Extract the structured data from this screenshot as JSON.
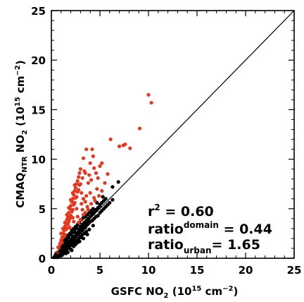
{
  "chart_data": {
    "type": "scatter",
    "title": "",
    "xlabel": {
      "base": "GSFC NO",
      "sub": "2",
      "unit_pre": " (10",
      "unit_sup": "15",
      "unit_mid": " cm",
      "unit_sup2": "−2",
      "unit_post": ")"
    },
    "ylabel": {
      "base": "CMAQ",
      "sub": "NTR",
      "mid": " NO",
      "sub2": "2",
      "unit_pre": " (10",
      "unit_sup": "15",
      "unit_mid": " cm",
      "unit_sup2": "−2",
      "unit_post": ")"
    },
    "xlim": [
      0,
      25
    ],
    "ylim": [
      0,
      25
    ],
    "x_ticks": [
      "0",
      "5",
      "10",
      "15",
      "20",
      "25"
    ],
    "y_ticks": [
      "0",
      "5",
      "10",
      "15",
      "20",
      "25"
    ],
    "one_to_one_line": true,
    "series": [
      {
        "color": "#000000",
        "points": [
          [
            0.3,
            0.1
          ],
          [
            0.5,
            0.2
          ],
          [
            0.6,
            0.4
          ],
          [
            0.7,
            0.3
          ],
          [
            0.8,
            0.5
          ],
          [
            0.9,
            0.6
          ],
          [
            1.0,
            0.8
          ],
          [
            1.1,
            0.7
          ],
          [
            1.2,
            0.9
          ],
          [
            1.3,
            1.0
          ],
          [
            1.4,
            1.1
          ],
          [
            1.5,
            1.2
          ],
          [
            1.6,
            1.3
          ],
          [
            1.7,
            1.5
          ],
          [
            1.8,
            1.4
          ],
          [
            1.9,
            1.6
          ],
          [
            2.0,
            1.7
          ],
          [
            2.1,
            1.8
          ],
          [
            2.2,
            2.0
          ],
          [
            2.3,
            1.9
          ],
          [
            2.4,
            2.1
          ],
          [
            2.5,
            2.2
          ],
          [
            2.6,
            2.3
          ],
          [
            2.7,
            2.4
          ],
          [
            2.8,
            2.5
          ],
          [
            2.9,
            2.6
          ],
          [
            3.0,
            2.7
          ],
          [
            3.1,
            2.9
          ],
          [
            3.2,
            2.8
          ],
          [
            3.3,
            3.0
          ],
          [
            3.4,
            3.2
          ],
          [
            3.5,
            3.1
          ],
          [
            3.6,
            3.3
          ],
          [
            3.7,
            3.4
          ],
          [
            3.8,
            3.5
          ],
          [
            3.9,
            3.6
          ],
          [
            4.0,
            3.7
          ],
          [
            4.2,
            3.8
          ],
          [
            4.4,
            4.0
          ],
          [
            4.6,
            4.2
          ],
          [
            4.8,
            4.3
          ],
          [
            5.0,
            4.6
          ],
          [
            5.2,
            4.8
          ],
          [
            5.4,
            5.0
          ],
          [
            5.6,
            5.2
          ],
          [
            5.8,
            5.4
          ],
          [
            6.0,
            5.6
          ],
          [
            6.3,
            5.9
          ],
          [
            4.5,
            4.8
          ],
          [
            5.0,
            5.3
          ],
          [
            5.6,
            6.0
          ],
          [
            5.3,
            6.2
          ],
          [
            4.7,
            5.6
          ],
          [
            4.1,
            4.6
          ],
          [
            6.3,
            7.2
          ],
          [
            6.9,
            7.7
          ],
          [
            1.0,
            0.4
          ],
          [
            1.2,
            0.6
          ],
          [
            1.4,
            0.8
          ],
          [
            1.6,
            0.9
          ],
          [
            1.8,
            1.1
          ],
          [
            2.0,
            1.3
          ],
          [
            2.2,
            1.5
          ],
          [
            2.4,
            1.6
          ],
          [
            2.6,
            1.8
          ],
          [
            2.8,
            2.0
          ],
          [
            3.0,
            2.2
          ],
          [
            3.2,
            2.4
          ],
          [
            3.4,
            2.5
          ],
          [
            3.6,
            2.7
          ],
          [
            1.5,
            0.5
          ],
          [
            2.5,
            1.4
          ],
          [
            0.8,
            0.2
          ],
          [
            1.1,
            0.3
          ],
          [
            1.3,
            0.5
          ],
          [
            0.6,
            0.1
          ],
          [
            2.0,
            0.9
          ],
          [
            2.3,
            1.2
          ],
          [
            2.7,
            1.6
          ],
          [
            3.1,
            2.1
          ],
          [
            3.5,
            2.5
          ],
          [
            3.9,
            2.9
          ],
          [
            4.3,
            3.3
          ],
          [
            1.7,
            0.6
          ],
          [
            2.1,
            0.8
          ],
          [
            2.9,
            1.7
          ],
          [
            3.3,
            2.0
          ],
          [
            3.7,
            2.4
          ],
          [
            1.1,
            1.5
          ],
          [
            1.3,
            1.8
          ],
          [
            1.5,
            2.0
          ],
          [
            1.7,
            2.3
          ],
          [
            1.9,
            2.5
          ],
          [
            2.1,
            2.8
          ],
          [
            2.3,
            3.0
          ],
          [
            2.5,
            3.2
          ],
          [
            2.7,
            3.4
          ],
          [
            2.9,
            3.6
          ],
          [
            3.1,
            3.9
          ],
          [
            3.3,
            4.1
          ],
          [
            3.5,
            4.2
          ],
          [
            3.7,
            4.4
          ],
          [
            3.9,
            4.6
          ],
          [
            4.1,
            4.8
          ],
          [
            4.3,
            5.0
          ],
          [
            1.4,
            1.6
          ],
          [
            1.6,
            1.9
          ],
          [
            1.8,
            2.1
          ],
          [
            2.0,
            2.4
          ],
          [
            2.2,
            2.6
          ],
          [
            2.4,
            2.9
          ],
          [
            2.6,
            3.1
          ],
          [
            0.4,
            0.3
          ],
          [
            0.5,
            0.5
          ],
          [
            0.7,
            0.6
          ],
          [
            0.9,
            0.9
          ],
          [
            1.0,
            1.1
          ],
          [
            1.2,
            1.3
          ],
          [
            1.3,
            1.4
          ],
          [
            1.5,
            1.6
          ],
          [
            2.2,
            2.2
          ],
          [
            2.5,
            2.6
          ],
          [
            2.8,
            2.9
          ],
          [
            3.0,
            3.2
          ],
          [
            3.2,
            3.4
          ],
          [
            3.4,
            3.6
          ],
          [
            3.6,
            3.8
          ],
          [
            3.8,
            4.0
          ],
          [
            4.0,
            4.2
          ],
          [
            4.2,
            4.4
          ],
          [
            4.4,
            4.6
          ],
          [
            4.6,
            4.9
          ],
          [
            4.8,
            5.1
          ],
          [
            5.0,
            5.4
          ],
          [
            5.2,
            5.6
          ],
          [
            5.4,
            5.8
          ]
        ]
      },
      {
        "color": "#e8361c",
        "points": [
          [
            0.6,
            0.6
          ],
          [
            0.8,
            1.0
          ],
          [
            0.9,
            1.4
          ],
          [
            1.0,
            1.8
          ],
          [
            1.1,
            2.1
          ],
          [
            1.2,
            2.5
          ],
          [
            1.3,
            2.8
          ],
          [
            1.4,
            3.2
          ],
          [
            1.5,
            3.5
          ],
          [
            1.6,
            3.9
          ],
          [
            1.7,
            4.2
          ],
          [
            1.8,
            4.6
          ],
          [
            1.9,
            5.0
          ],
          [
            2.0,
            5.3
          ],
          [
            2.1,
            5.7
          ],
          [
            2.2,
            6.0
          ],
          [
            2.3,
            6.4
          ],
          [
            2.4,
            6.8
          ],
          [
            2.5,
            7.1
          ],
          [
            2.6,
            7.5
          ],
          [
            2.7,
            7.8
          ],
          [
            2.8,
            8.2
          ],
          [
            2.9,
            8.6
          ],
          [
            3.0,
            9.0
          ],
          [
            1.0,
            2.5
          ],
          [
            1.2,
            3.0
          ],
          [
            1.4,
            3.6
          ],
          [
            1.6,
            4.4
          ],
          [
            1.8,
            5.1
          ],
          [
            2.0,
            5.9
          ],
          [
            2.2,
            6.6
          ],
          [
            2.4,
            7.4
          ],
          [
            1.3,
            2.2
          ],
          [
            1.5,
            2.9
          ],
          [
            1.7,
            3.4
          ],
          [
            1.9,
            4.0
          ],
          [
            2.1,
            4.7
          ],
          [
            2.3,
            5.4
          ],
          [
            2.5,
            6.1
          ],
          [
            2.7,
            6.7
          ],
          [
            1.1,
            1.6
          ],
          [
            1.4,
            2.4
          ],
          [
            1.6,
            3.0
          ],
          [
            1.8,
            3.7
          ],
          [
            2.0,
            4.3
          ],
          [
            2.2,
            4.9
          ],
          [
            2.4,
            5.6
          ],
          [
            2.6,
            6.2
          ],
          [
            2.8,
            6.9
          ],
          [
            3.0,
            7.5
          ],
          [
            3.2,
            8.1
          ],
          [
            3.4,
            8.8
          ],
          [
            2.9,
            7.4
          ],
          [
            3.1,
            6.6
          ],
          [
            3.3,
            6.0
          ],
          [
            3.5,
            5.7
          ],
          [
            3.3,
            10.1
          ],
          [
            3.5,
            8.6
          ],
          [
            3.6,
            11.0
          ],
          [
            4.2,
            11.0
          ],
          [
            4.3,
            10.3
          ],
          [
            4.0,
            9.6
          ],
          [
            4.4,
            9.1
          ],
          [
            4.1,
            7.9
          ],
          [
            3.8,
            7.6
          ],
          [
            3.9,
            8.4
          ],
          [
            4.6,
            8.6
          ],
          [
            5.0,
            9.3
          ],
          [
            5.2,
            9.6
          ],
          [
            4.8,
            8.1
          ],
          [
            5.5,
            7.6
          ],
          [
            4.7,
            7.0
          ],
          [
            5.2,
            6.8
          ],
          [
            5.8,
            8.5
          ],
          [
            6.1,
            12.0
          ],
          [
            7.0,
            11.3
          ],
          [
            7.4,
            11.4
          ],
          [
            7.6,
            11.5
          ],
          [
            8.1,
            11.1
          ],
          [
            9.1,
            13.1
          ],
          [
            10.0,
            16.5
          ],
          [
            10.3,
            15.7
          ],
          [
            2.2,
            4.1
          ],
          [
            2.6,
            5.0
          ],
          [
            3.1,
            5.5
          ],
          [
            3.6,
            6.3
          ],
          [
            4.0,
            6.6
          ],
          [
            4.4,
            6.1
          ],
          [
            1.9,
            3.1
          ],
          [
            2.3,
            3.7
          ],
          [
            2.7,
            4.2
          ],
          [
            3.2,
            4.9
          ],
          [
            3.7,
            5.2
          ],
          [
            4.1,
            5.5
          ],
          [
            4.5,
            5.8
          ],
          [
            4.9,
            6.3
          ],
          [
            2.8,
            3.6
          ],
          [
            3.0,
            3.9
          ],
          [
            3.3,
            4.4
          ],
          [
            3.5,
            4.6
          ],
          [
            3.8,
            4.9
          ],
          [
            0.7,
            1.1
          ],
          [
            0.9,
            1.5
          ],
          [
            1.1,
            2.0
          ]
        ]
      }
    ],
    "annotations": {
      "r2": {
        "base": "r",
        "sup": "2",
        "rest": " = 0.60"
      },
      "ratio_domain": {
        "base": "ratio",
        "sub": "domain",
        "rest": " = 0.44"
      },
      "ratio_urban": {
        "base": "ratio",
        "sub": "urban",
        "rest": "= 1.65"
      }
    }
  }
}
